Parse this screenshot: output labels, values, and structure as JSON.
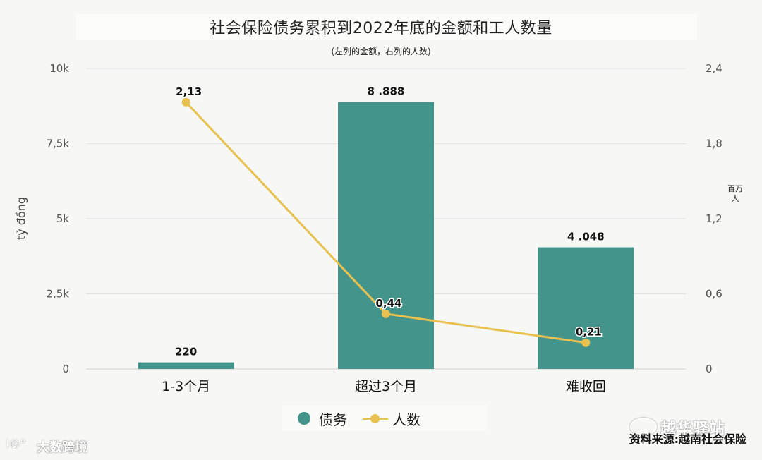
{
  "chart_data": {
    "type": "bar+line",
    "title": "社会保险债务累积到2022年底的金额和工人数量",
    "subtitle": "(左列的金额，右列的人数)",
    "categories": [
      "1-3个月",
      "超过3个月",
      "难收回"
    ],
    "series": [
      {
        "name": "债务",
        "type": "bar",
        "axis": "left",
        "values": [
          220,
          8888,
          4048
        ],
        "labels": [
          "220",
          "8 .888",
          "4 .048"
        ],
        "color": "#43948a"
      },
      {
        "name": "人数",
        "type": "line",
        "axis": "right",
        "values": [
          2.13,
          0.44,
          0.21
        ],
        "labels": [
          "2,13",
          "0,44",
          "0,21"
        ],
        "color": "#e8c150"
      }
    ],
    "y_left": {
      "label": "tỷ đồng",
      "ylim": [
        0,
        10000
      ],
      "ticks": [
        0,
        2500,
        5000,
        7500,
        10000
      ],
      "tick_labels": [
        "0",
        "2,5k",
        "5k",
        "7,5k",
        "10k"
      ]
    },
    "y_right": {
      "label_lines": [
        "百万",
        "人"
      ],
      "ylim": [
        0,
        2.4
      ],
      "ticks": [
        0,
        0.6,
        1.2,
        1.8,
        2.4
      ],
      "tick_labels": [
        "0",
        "0,6",
        "1,2",
        "1,8",
        "2,4"
      ]
    },
    "grid": true,
    "legend_position": "bottom"
  },
  "source": "资料来源:越南社会保险",
  "watermarks": {
    "right": "越华驿站",
    "left": "大数跨境",
    "left_icon_text": "l©°"
  }
}
